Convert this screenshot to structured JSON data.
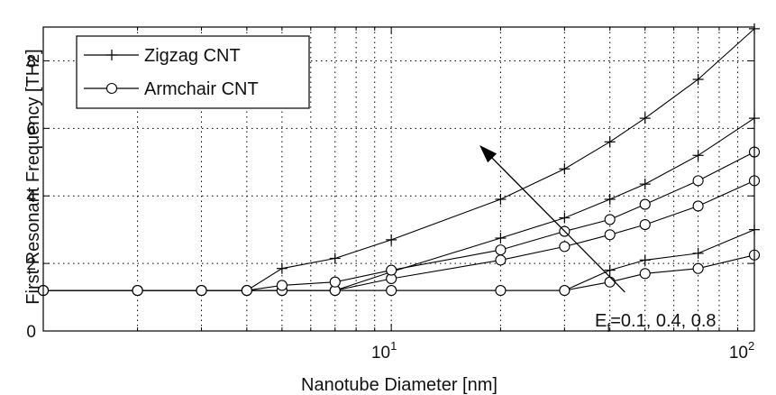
{
  "chart_data": {
    "type": "line",
    "xlabel": "Nanotube Diameter [nm]",
    "ylabel": "First Resonant Frequency [THz]",
    "x_scale": "log",
    "xlim": [
      1.1,
      100
    ],
    "ylim": [
      0,
      9
    ],
    "x_ticks": [
      {
        "value": 10,
        "base": "10",
        "exp": "1"
      },
      {
        "value": 100,
        "base": "10",
        "exp": "2"
      }
    ],
    "y_ticks": [
      0,
      2,
      4,
      6,
      8
    ],
    "grid": true,
    "legend": {
      "placement": "top-left",
      "entries": [
        {
          "label": "Zigzag CNT",
          "marker": "plus"
        },
        {
          "label": "Armchair CNT",
          "marker": "circle"
        }
      ]
    },
    "annotation": {
      "prefix": "E",
      "sub": "f",
      "text": "=0.1, 0.4, 0.8",
      "arrow_from": {
        "x": 44,
        "y": 1.15
      },
      "arrow_to": {
        "x": 17.5,
        "y": 5.5
      }
    },
    "x": [
      1.1,
      2,
      3,
      4,
      5,
      7,
      10,
      20,
      30,
      40,
      50,
      70,
      100
    ],
    "series": [
      {
        "marker": "plus",
        "values": [
          1.2,
          1.2,
          1.2,
          1.2,
          1.2,
          1.2,
          1.2,
          1.2,
          1.2,
          1.8,
          2.1,
          2.3,
          3.0
        ]
      },
      {
        "marker": "plus",
        "values": [
          1.2,
          1.2,
          1.2,
          1.2,
          1.2,
          1.2,
          1.75,
          2.75,
          3.35,
          3.9,
          4.35,
          5.2,
          6.3
        ]
      },
      {
        "marker": "plus",
        "values": [
          1.2,
          1.2,
          1.2,
          1.2,
          1.85,
          2.15,
          2.7,
          3.9,
          4.8,
          5.6,
          6.3,
          7.45,
          8.95
        ]
      },
      {
        "marker": "circle",
        "values": [
          1.2,
          1.2,
          1.2,
          1.2,
          1.2,
          1.2,
          1.2,
          1.2,
          1.2,
          1.45,
          1.7,
          1.85,
          2.25
        ]
      },
      {
        "marker": "circle",
        "values": [
          1.2,
          1.2,
          1.2,
          1.2,
          1.2,
          1.2,
          1.55,
          2.1,
          2.5,
          2.85,
          3.15,
          3.7,
          4.45
        ]
      },
      {
        "marker": "circle",
        "values": [
          1.2,
          1.2,
          1.2,
          1.2,
          1.35,
          1.45,
          1.8,
          2.4,
          2.95,
          3.3,
          3.75,
          4.45,
          5.3
        ]
      }
    ]
  }
}
